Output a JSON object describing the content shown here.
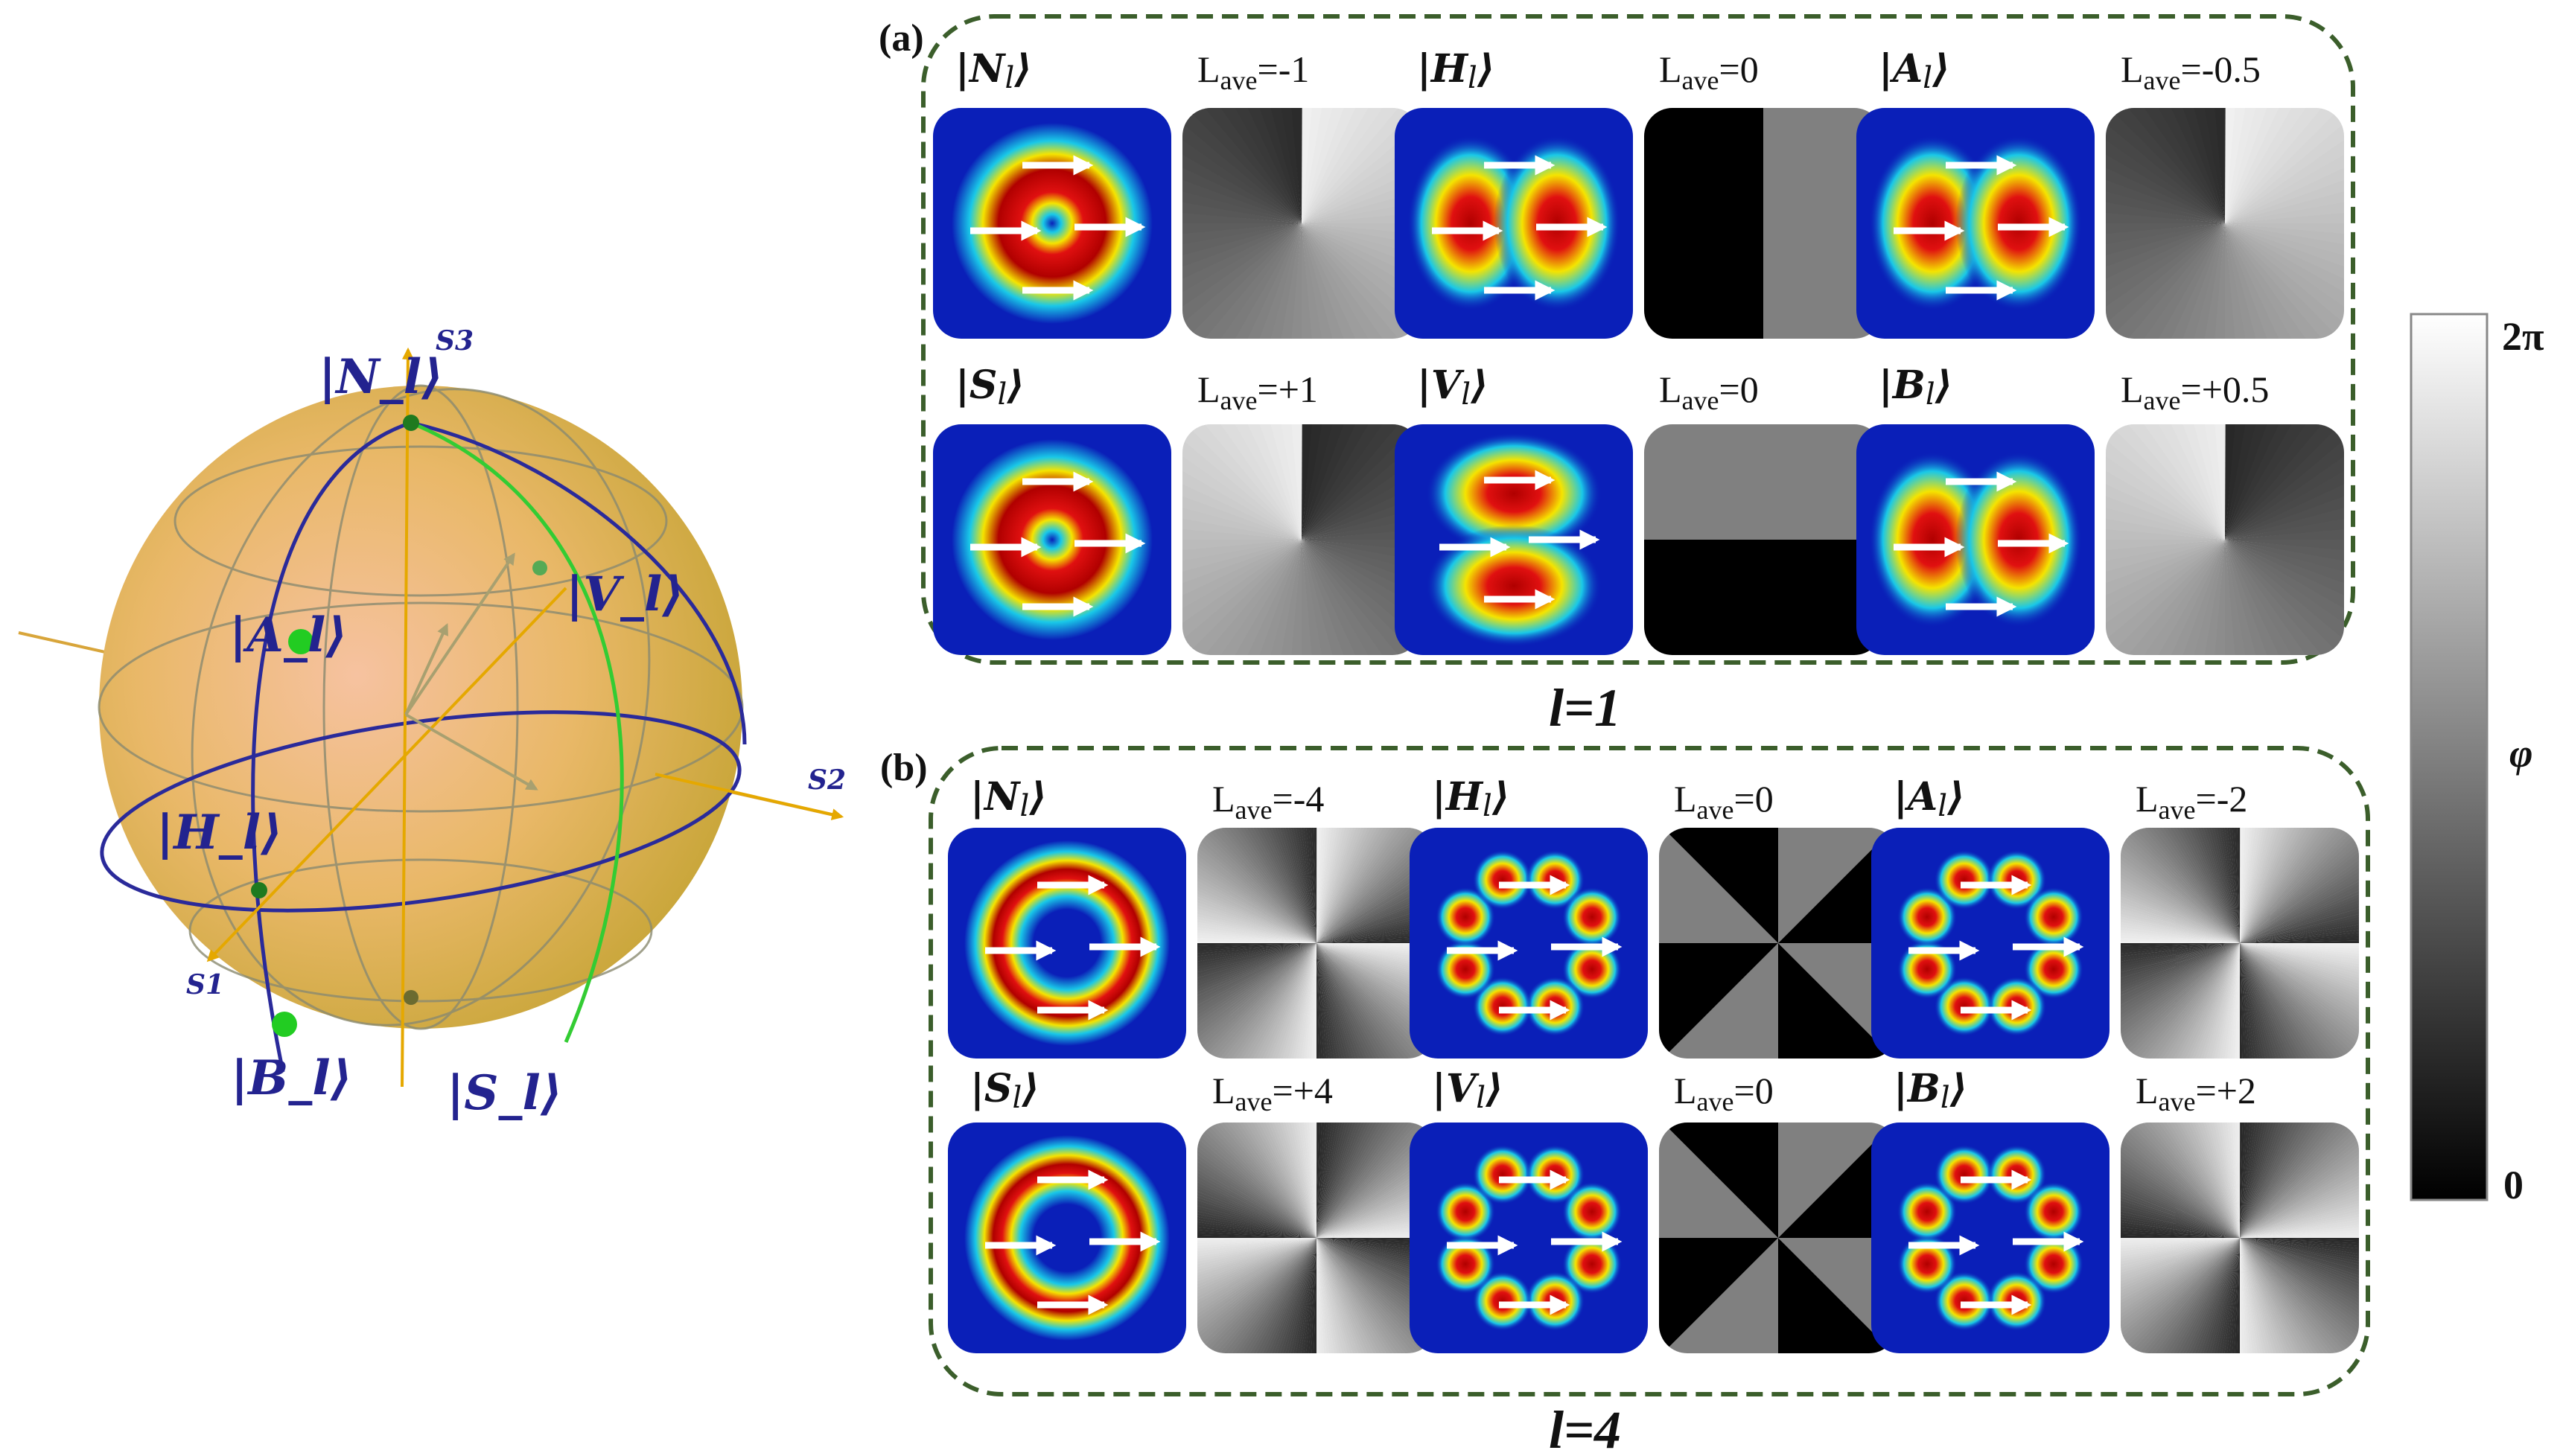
{
  "sphere": {
    "kets": {
      "N": "|N_l⟩",
      "S": "|S_l⟩",
      "H": "|H_l⟩",
      "V": "|V_l⟩",
      "A": "|A_l⟩",
      "B": "|B_l⟩"
    },
    "axes": {
      "s1": "S1",
      "s2": "S2",
      "s3": "S3"
    },
    "colors": {
      "sphere": "#d9b24a",
      "great_circle": "#2a2a9a",
      "meridian": "#33cc33",
      "point": "#22cc22"
    }
  },
  "panels": [
    {
      "label": "(a)",
      "l_label": "l=1",
      "l": 1,
      "rows": [
        [
          {
            "state": "N",
            "ket": "N",
            "lave": "Lave=-1",
            "intensity": "donut",
            "phase": "vortex_neg"
          },
          {
            "state": "H",
            "ket": "H",
            "lave": "Lave=0",
            "intensity": "lobes_h",
            "phase": "split_v"
          },
          {
            "state": "A",
            "ket": "A",
            "lave": "Lave=-0.5",
            "intensity": "lobes_h",
            "phase": "vortex_neg"
          }
        ],
        [
          {
            "state": "S",
            "ket": "S",
            "lave": "Lave=+1",
            "intensity": "donut",
            "phase": "vortex_pos"
          },
          {
            "state": "V",
            "ket": "V",
            "lave": "Lave=0",
            "intensity": "lobes_v",
            "phase": "split_h"
          },
          {
            "state": "B",
            "ket": "B",
            "lave": "Lave=+0.5",
            "intensity": "lobes_h",
            "phase": "vortex_pos"
          }
        ]
      ]
    },
    {
      "label": "(b)",
      "l_label": "l=4",
      "l": 4,
      "rows": [
        [
          {
            "state": "N",
            "ket": "N",
            "lave": "Lave=-4",
            "intensity": "ring",
            "phase": "vortex_neg"
          },
          {
            "state": "H",
            "ket": "H",
            "lave": "Lave=0",
            "intensity": "petals",
            "phase": "sectors"
          },
          {
            "state": "A",
            "ket": "A",
            "lave": "Lave=-2",
            "intensity": "petals",
            "phase": "vortex_neg"
          }
        ],
        [
          {
            "state": "S",
            "ket": "S",
            "lave": "Lave=+4",
            "intensity": "ring",
            "phase": "vortex_pos"
          },
          {
            "state": "V",
            "ket": "V",
            "lave": "Lave=0",
            "intensity": "petals",
            "phase": "sectors"
          },
          {
            "state": "B",
            "ket": "B",
            "lave": "Lave=+2",
            "intensity": "petals",
            "phase": "vortex_pos"
          }
        ]
      ]
    }
  ],
  "colorbar": {
    "top": "2π",
    "bottom": "0",
    "label": "φ"
  },
  "colors": {
    "border": "#3b5e2b",
    "beam_bg": "#0a1fb8",
    "arrow": "#ffffff"
  }
}
